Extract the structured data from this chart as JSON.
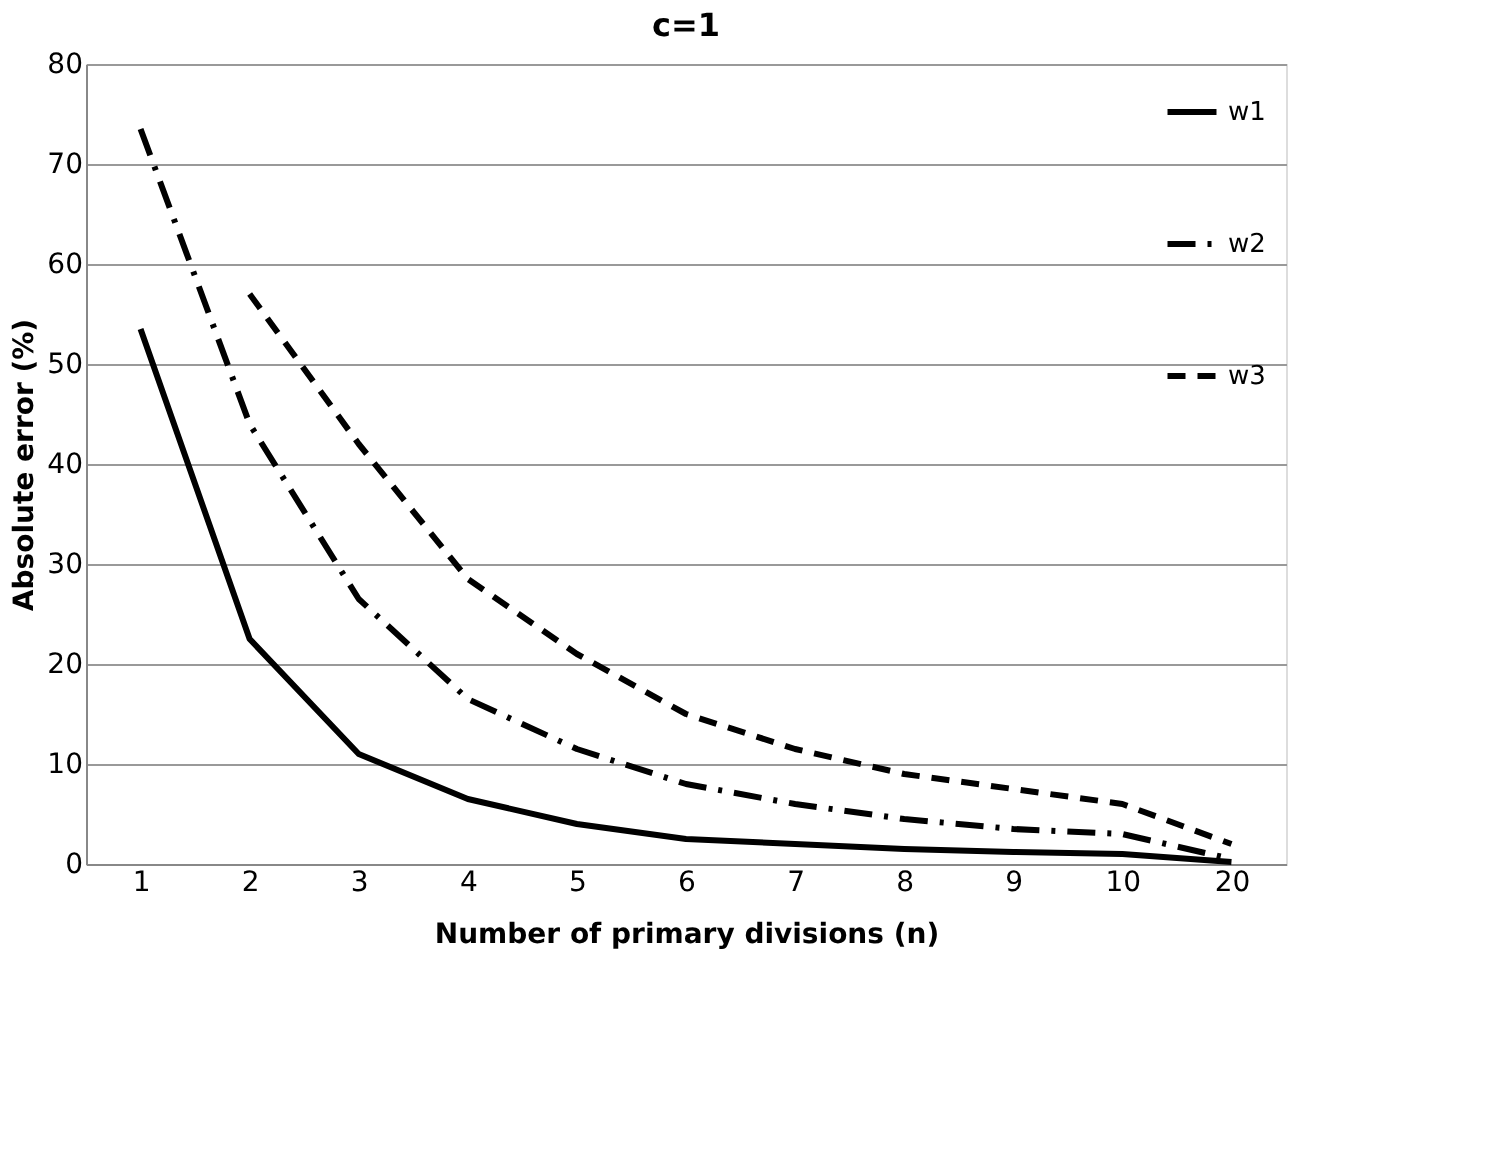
{
  "chart_data": {
    "type": "line",
    "title": "c=1",
    "xlabel": "Number of primary divisions (n)",
    "ylabel": "Absolute error (%)",
    "categories": [
      "1",
      "2",
      "3",
      "4",
      "5",
      "6",
      "7",
      "8",
      "9",
      "10",
      "20"
    ],
    "series": [
      {
        "name": "w1",
        "color": "#000000",
        "line_style": "solid",
        "values": [
          53.5,
          22.5,
          11,
          6.5,
          4,
          2.5,
          2,
          1.5,
          1.2,
          1,
          0.2
        ]
      },
      {
        "name": "w2",
        "color": "#000000",
        "line_style": "dashdot",
        "values": [
          73.5,
          44,
          26.5,
          16.5,
          11.5,
          8,
          6,
          4.5,
          3.5,
          3,
          0.5
        ]
      },
      {
        "name": "w3",
        "color": "#000000",
        "line_style": "dashed",
        "values": [
          null,
          57,
          42,
          28.5,
          21,
          15,
          11.5,
          9,
          7.5,
          6,
          2
        ]
      }
    ],
    "ylim": [
      0,
      80
    ],
    "yticks": [
      0,
      10,
      20,
      30,
      40,
      50,
      60,
      70,
      80
    ],
    "grid": "y",
    "legend": "top right",
    "marker": "none"
  }
}
